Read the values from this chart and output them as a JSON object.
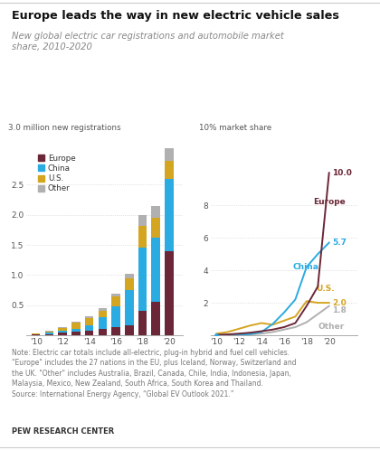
{
  "title": "Europe leads the way in new electric vehicle sales",
  "subtitle": "New global electric car registrations and automobile market\nshare, 2010-2020",
  "note": "Note: Electric car totals include all-electric, plug-in hybrid and fuel cell vehicles.\n\"Europe\" includes the 27 nations in the EU, plus Iceland, Norway, Switzerland and\nthe UK. \"Other\" includes Australia, Brazil, Canada, Chile, India, Indonesia, Japan,\nMalaysia, Mexico, New Zealand, South Africa, South Korea and Thailand.\nSource: International Energy Agency, “Global EV Outlook 2021.”",
  "source_label": "PEW RESEARCH CENTER",
  "bar_years": [
    2010,
    2011,
    2012,
    2013,
    2014,
    2015,
    2016,
    2017,
    2018,
    2019,
    2020
  ],
  "bar_europe": [
    0.01,
    0.02,
    0.04,
    0.06,
    0.08,
    0.11,
    0.13,
    0.17,
    0.4,
    0.56,
    1.4
  ],
  "bar_china": [
    0.01,
    0.02,
    0.03,
    0.05,
    0.08,
    0.19,
    0.35,
    0.58,
    1.06,
    1.06,
    1.2
  ],
  "bar_us": [
    0.01,
    0.02,
    0.05,
    0.1,
    0.12,
    0.11,
    0.16,
    0.2,
    0.36,
    0.33,
    0.295
  ],
  "bar_other": [
    0.0,
    0.01,
    0.01,
    0.02,
    0.03,
    0.04,
    0.05,
    0.07,
    0.18,
    0.2,
    0.22
  ],
  "line_years": [
    2010,
    2011,
    2012,
    2013,
    2014,
    2015,
    2016,
    2017,
    2018,
    2019,
    2020
  ],
  "line_europe": [
    0.03,
    0.05,
    0.1,
    0.16,
    0.25,
    0.35,
    0.5,
    0.75,
    1.8,
    3.0,
    10.0
  ],
  "line_china": [
    0.0,
    0.01,
    0.03,
    0.07,
    0.2,
    0.7,
    1.4,
    2.2,
    4.2,
    5.0,
    5.7
  ],
  "line_us": [
    0.1,
    0.2,
    0.4,
    0.6,
    0.75,
    0.65,
    0.9,
    1.15,
    2.1,
    2.0,
    2.0
  ],
  "line_other": [
    0.0,
    0.01,
    0.02,
    0.05,
    0.1,
    0.2,
    0.35,
    0.5,
    0.8,
    1.3,
    1.8
  ],
  "color_europe": "#6b2737",
  "color_china": "#2aabe2",
  "color_us": "#d4a520",
  "color_other": "#b0b0b0",
  "bar_ylabel": "3.0 million new registrations",
  "line_ylabel": "10% market share",
  "bar_yticks": [
    0.5,
    1.0,
    1.5,
    2.0,
    2.5
  ],
  "line_yticks": [
    2,
    4,
    6,
    8
  ],
  "bar_ylim": [
    0,
    3.1
  ],
  "line_ylim": [
    0,
    11.5
  ],
  "bar_xlim": [
    2009.3,
    2021.0
  ],
  "line_xlim": [
    2009.5,
    2022.5
  ],
  "xtick_labels": [
    "'10",
    "'12",
    "'14",
    "'16",
    "'18",
    "'20"
  ],
  "xtick_positions": [
    2010,
    2012,
    2014,
    2016,
    2018,
    2020
  ],
  "background_color": "#ffffff"
}
